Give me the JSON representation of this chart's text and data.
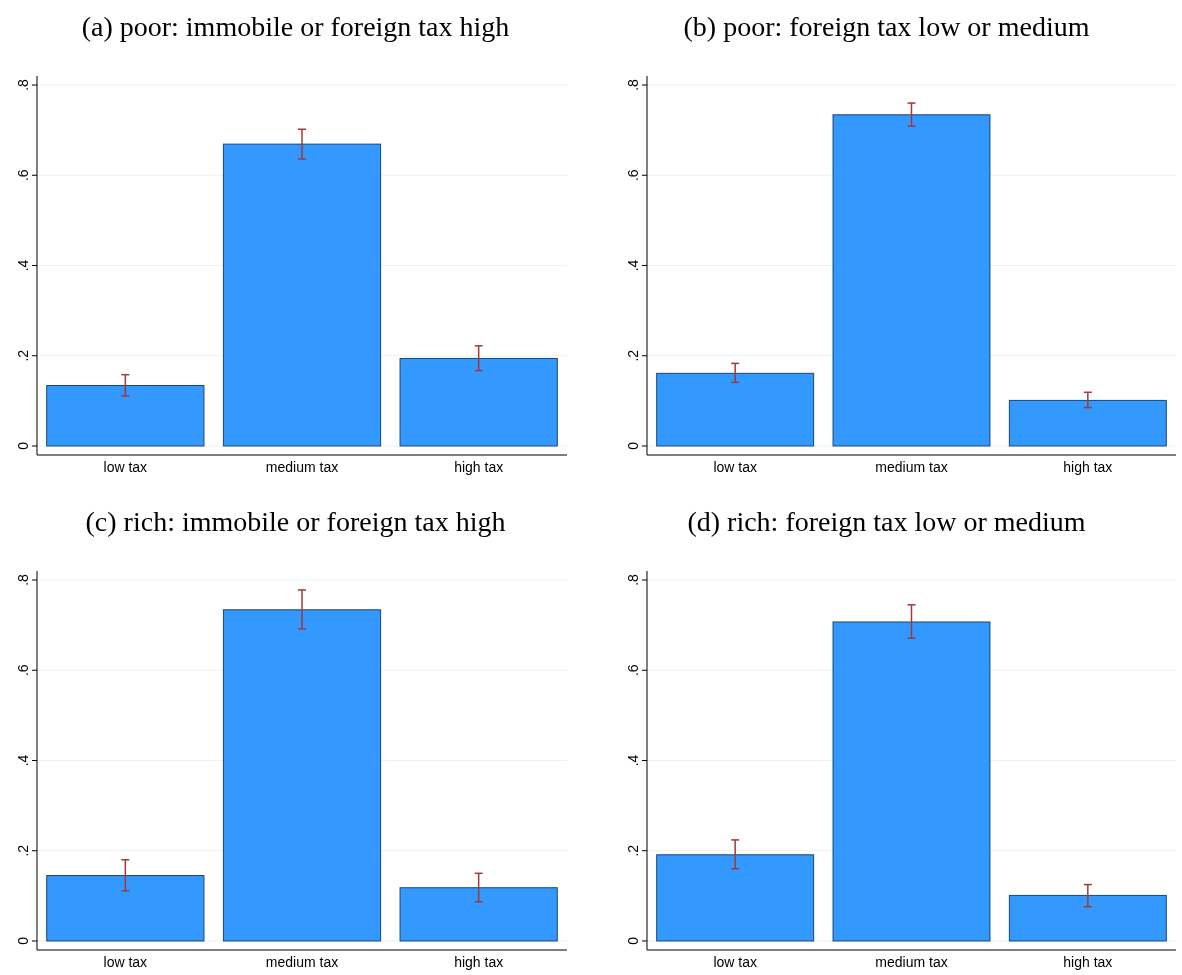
{
  "chart_data": [
    {
      "type": "bar",
      "title": "(a) poor: immobile or foreign tax high",
      "categories": [
        "low tax",
        "medium tax",
        "high tax"
      ],
      "values": [
        0.134,
        0.669,
        0.194
      ],
      "errors": [
        [
          0.111,
          0.158
        ],
        [
          0.636,
          0.702
        ],
        [
          0.167,
          0.222
        ]
      ],
      "color": "#3399ff",
      "ylim": [
        -0.02,
        0.82
      ],
      "yticks": [
        {
          "value": 0,
          "label": "0"
        },
        {
          "value": 0.2,
          "label": ".2"
        },
        {
          "value": 0.4,
          "label": ".4"
        },
        {
          "value": 0.6,
          "label": ".6"
        },
        {
          "value": 0.8,
          "label": ".8"
        }
      ],
      "grid": "y"
    },
    {
      "type": "bar",
      "title": "(b) poor: foreign tax low or medium",
      "categories": [
        "low tax",
        "medium tax",
        "high tax"
      ],
      "values": [
        0.161,
        0.734,
        0.101
      ],
      "errors": [
        [
          0.141,
          0.183
        ],
        [
          0.709,
          0.76
        ],
        [
          0.085,
          0.119
        ]
      ],
      "color": "#3399ff",
      "ylim": [
        -0.02,
        0.82
      ],
      "yticks": [
        {
          "value": 0,
          "label": "0"
        },
        {
          "value": 0.2,
          "label": ".2"
        },
        {
          "value": 0.4,
          "label": ".4"
        },
        {
          "value": 0.6,
          "label": ".6"
        },
        {
          "value": 0.8,
          "label": ".8"
        }
      ],
      "grid": "y"
    },
    {
      "type": "bar",
      "title": "(c) rich: immobile or foreign tax high",
      "categories": [
        "low tax",
        "medium tax",
        "high tax"
      ],
      "values": [
        0.145,
        0.734,
        0.118
      ],
      "errors": [
        [
          0.111,
          0.18
        ],
        [
          0.692,
          0.778
        ],
        [
          0.087,
          0.15
        ]
      ],
      "color": "#3399ff",
      "ylim": [
        -0.02,
        0.82
      ],
      "yticks": [
        {
          "value": 0,
          "label": "0"
        },
        {
          "value": 0.2,
          "label": ".2"
        },
        {
          "value": 0.4,
          "label": ".4"
        },
        {
          "value": 0.6,
          "label": ".6"
        },
        {
          "value": 0.8,
          "label": ".8"
        }
      ],
      "grid": "y"
    },
    {
      "type": "bar",
      "title": "(d) rich: foreign tax low or medium",
      "categories": [
        "low tax",
        "medium tax",
        "high tax"
      ],
      "values": [
        0.191,
        0.707,
        0.101
      ],
      "errors": [
        [
          0.16,
          0.224
        ],
        [
          0.671,
          0.745
        ],
        [
          0.076,
          0.125
        ]
      ],
      "color": "#3399ff",
      "ylim": [
        -0.02,
        0.82
      ],
      "yticks": [
        {
          "value": 0,
          "label": "0"
        },
        {
          "value": 0.2,
          "label": ".2"
        },
        {
          "value": 0.4,
          "label": ".4"
        },
        {
          "value": 0.6,
          "label": ".6"
        },
        {
          "value": 0.8,
          "label": ".8"
        }
      ],
      "grid": "y"
    }
  ]
}
